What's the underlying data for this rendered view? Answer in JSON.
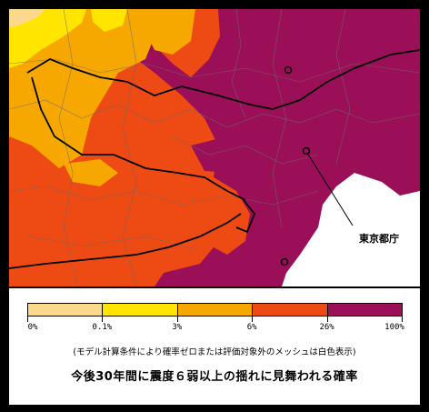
{
  "map": {
    "annotation": "東京都庁",
    "colors": {
      "band_0": "#fbd98c",
      "band_1": "#ffe500",
      "band_2": "#f7a800",
      "band_3": "#ee4a14",
      "band_4": "#9b0e58",
      "unassessed": "#ffffff"
    }
  },
  "legend": {
    "tick_labels": [
      "0%",
      "0.1%",
      "3%",
      "6%",
      "26%",
      "100%"
    ],
    "colors": [
      "#fbd98c",
      "#ffe500",
      "#f7a800",
      "#ee4a14",
      "#9b0e58"
    ]
  },
  "note": "(モデル計算条件により確率ゼロまたは評価対象外のメッシュは白色表示)",
  "caption": "今後30年間に震度６弱以上の揺れに見舞われる確率"
}
